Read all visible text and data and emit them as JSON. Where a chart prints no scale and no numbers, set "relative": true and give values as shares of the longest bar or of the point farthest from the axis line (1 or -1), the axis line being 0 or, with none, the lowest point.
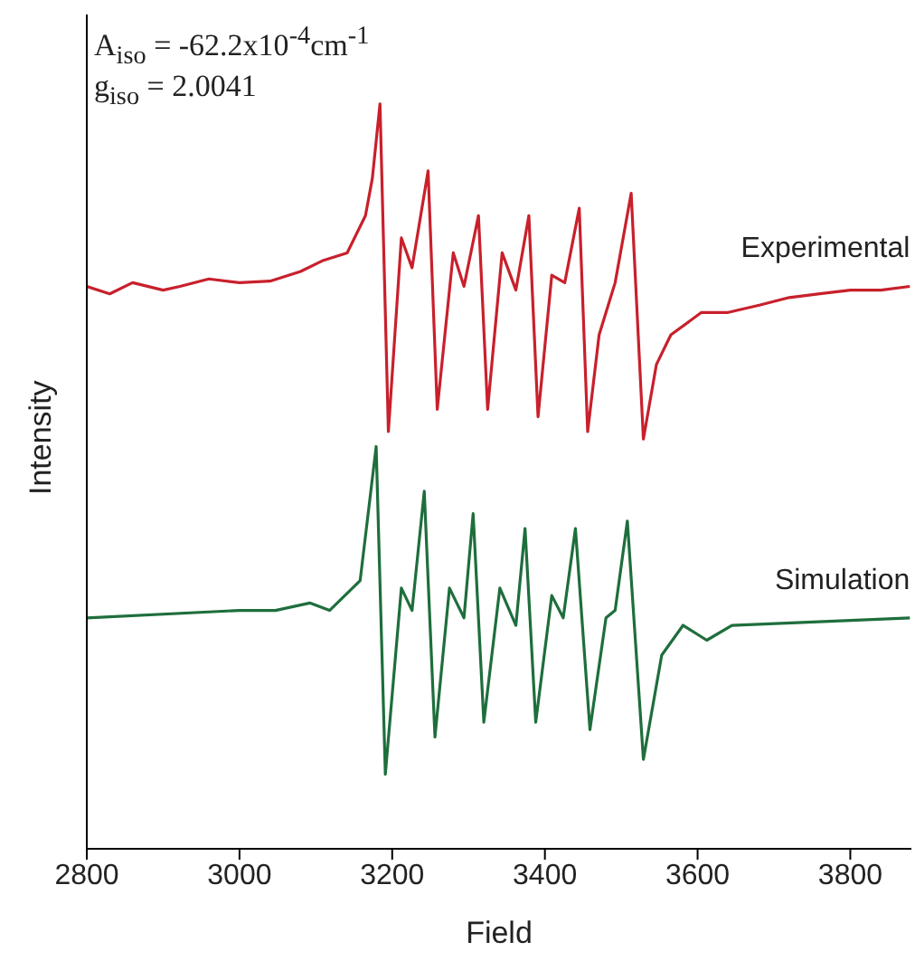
{
  "chart_data": {
    "type": "line",
    "relative": true,
    "xlabel": "Field",
    "ylabel": "Intensity",
    "xlim": [
      2800,
      3880
    ],
    "xticks": [
      2800,
      3000,
      3200,
      3400,
      3600,
      3800
    ],
    "marker": "none",
    "annotations": [
      "A$_{iso}$ = -62.2x10$^{-4}$cm$^{-1}$",
      "g$_{iso}$ =  2.0041"
    ],
    "series": [
      {
        "name": "Experimental",
        "color": "#c8202c",
        "x": [
          2800,
          2830,
          2860,
          2900,
          2922,
          2960,
          3000,
          3040,
          3080,
          3110,
          3141,
          3165,
          3174,
          3184,
          3195,
          3212,
          3226,
          3247,
          3259,
          3280,
          3294,
          3313,
          3325,
          3344,
          3362,
          3379,
          3391,
          3409,
          3426,
          3445,
          3456,
          3471,
          3492,
          3513,
          3529,
          3546,
          3565,
          3605,
          3640,
          3682,
          3720,
          3760,
          3800,
          3840,
          3878
        ],
        "values": [
          0.755,
          0.745,
          0.76,
          0.75,
          0.755,
          0.765,
          0.76,
          0.762,
          0.775,
          0.79,
          0.8,
          0.85,
          0.9,
          1.0,
          0.56,
          0.82,
          0.78,
          0.91,
          0.59,
          0.8,
          0.755,
          0.85,
          0.59,
          0.8,
          0.75,
          0.85,
          0.58,
          0.77,
          0.76,
          0.86,
          0.56,
          0.69,
          0.76,
          0.88,
          0.55,
          0.65,
          0.69,
          0.72,
          0.72,
          0.73,
          0.74,
          0.745,
          0.75,
          0.75,
          0.755
        ]
      },
      {
        "name": "Simulation",
        "color": "#1e6e3c",
        "x": [
          2800,
          3000,
          3047,
          3092,
          3118,
          3158,
          3179,
          3191,
          3212,
          3226,
          3242,
          3256,
          3275,
          3294,
          3306,
          3320,
          3341,
          3362,
          3374,
          3388,
          3409,
          3424,
          3440,
          3459,
          3480,
          3492,
          3508,
          3529,
          3553,
          3581,
          3612,
          3645,
          3878
        ],
        "values": [
          0.31,
          0.32,
          0.32,
          0.33,
          0.32,
          0.36,
          0.54,
          0.1,
          0.35,
          0.32,
          0.48,
          0.15,
          0.35,
          0.31,
          0.45,
          0.17,
          0.35,
          0.3,
          0.43,
          0.17,
          0.34,
          0.31,
          0.43,
          0.16,
          0.31,
          0.32,
          0.44,
          0.12,
          0.26,
          0.3,
          0.28,
          0.3,
          0.31
        ]
      }
    ]
  }
}
